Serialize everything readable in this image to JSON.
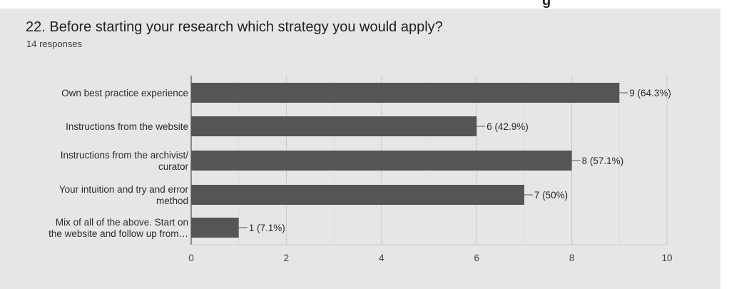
{
  "page": {
    "title": "22. Before starting your research which strategy you would apply?",
    "subtitle": "14 responses"
  },
  "chart_data": {
    "type": "bar",
    "orientation": "horizontal",
    "categories": [
      [
        "Own best practice experience"
      ],
      [
        "Instructions from the website"
      ],
      [
        "Instructions from the archivist/",
        "curator"
      ],
      [
        "Your intuition and try and error",
        "method"
      ],
      [
        "Mix of all of the above. Start on",
        "the website and follow up from…"
      ]
    ],
    "values": [
      9,
      6,
      8,
      7,
      1
    ],
    "data_labels": [
      "9 (64.3%)",
      "6 (42.9%)",
      "8 (57.1%)",
      "7 (50%)",
      "1 (7.1%)"
    ],
    "xlim": [
      0,
      10
    ],
    "xticks": [
      0,
      2,
      4,
      6,
      8,
      10
    ],
    "grid": true,
    "bar_color": "#555555",
    "xlabel": "",
    "ylabel": ""
  }
}
